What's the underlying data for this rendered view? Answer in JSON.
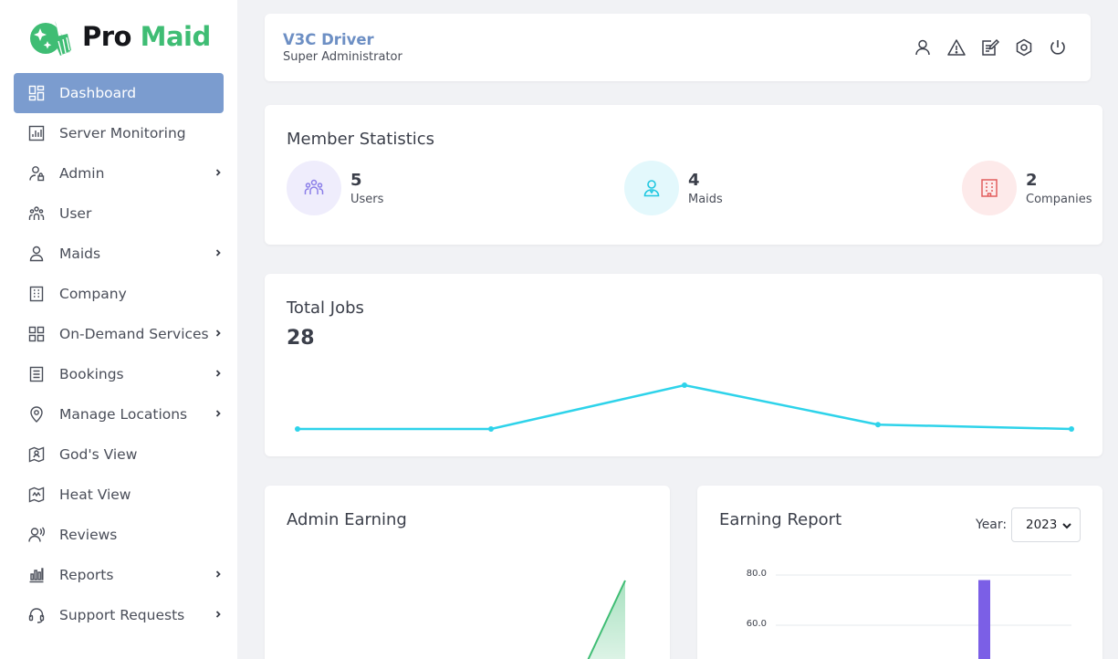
{
  "brand": {
    "word1": "Pro",
    "word2": "Maid"
  },
  "sidebar": {
    "items": [
      {
        "label": "Dashboard",
        "icon": "dashboard-icon",
        "active": true,
        "expandable": false
      },
      {
        "label": "Server Monitoring",
        "icon": "bar-chart-icon",
        "expandable": false
      },
      {
        "label": "Admin",
        "icon": "user-lock-icon",
        "expandable": true
      },
      {
        "label": "User",
        "icon": "users-icon",
        "expandable": false
      },
      {
        "label": "Maids",
        "icon": "user-icon",
        "expandable": true
      },
      {
        "label": "Company",
        "icon": "building-icon",
        "expandable": false
      },
      {
        "label": "On-Demand Services",
        "icon": "grid-icon",
        "expandable": true
      },
      {
        "label": "Bookings",
        "icon": "document-icon",
        "expandable": true
      },
      {
        "label": "Manage Locations",
        "icon": "map-pin-icon",
        "expandable": true
      },
      {
        "label": "God's View",
        "icon": "map-view-icon",
        "expandable": false
      },
      {
        "label": "Heat View",
        "icon": "heat-map-icon",
        "expandable": false
      },
      {
        "label": "Reviews",
        "icon": "reviews-icon",
        "expandable": false
      },
      {
        "label": "Reports",
        "icon": "reports-icon",
        "expandable": true
      },
      {
        "label": "Support Requests",
        "icon": "headset-icon",
        "expandable": true
      }
    ]
  },
  "header": {
    "name": "V3C Driver",
    "role": "Super Administrator",
    "icons": [
      "profile-icon",
      "alert-icon",
      "edit-icon",
      "settings-icon",
      "power-icon"
    ]
  },
  "member_stats": {
    "title": "Member Statistics",
    "items": [
      {
        "value": "5",
        "label": "Users",
        "icon": "users-icon",
        "color": "#8b7ee8",
        "bg": "#efedfc"
      },
      {
        "value": "4",
        "label": "Maids",
        "icon": "user-icon",
        "color": "#1fc7e0",
        "bg": "#e3f8fc"
      },
      {
        "value": "2",
        "label": "Companies",
        "icon": "building-icon",
        "color": "#e25c5c",
        "bg": "#fdeaea"
      }
    ]
  },
  "total_jobs": {
    "title": "Total Jobs",
    "value": "28",
    "color": "#2ed3ea"
  },
  "admin_earning": {
    "title": "Admin Earning",
    "color": "#3fbd74"
  },
  "earning_report": {
    "title": "Earning Report",
    "year_label": "Year:",
    "year": "2023",
    "bar_color": "#7b5fe6"
  },
  "chart_data": [
    {
      "type": "line",
      "title": "Total Jobs",
      "x": [
        1,
        2,
        3,
        4,
        5
      ],
      "values": [
        0,
        0,
        10,
        1,
        0
      ],
      "ylim": [
        0,
        10
      ],
      "grid": false
    },
    {
      "type": "area",
      "title": "Admin Earning",
      "x": [
        1,
        2
      ],
      "values": [
        0,
        100
      ],
      "grid": false
    },
    {
      "type": "bar",
      "title": "Earning Report",
      "ytick_labels": [
        "80.0",
        "60.0"
      ],
      "values": [
        78
      ],
      "ylim": [
        0,
        80
      ],
      "grid": true
    }
  ]
}
